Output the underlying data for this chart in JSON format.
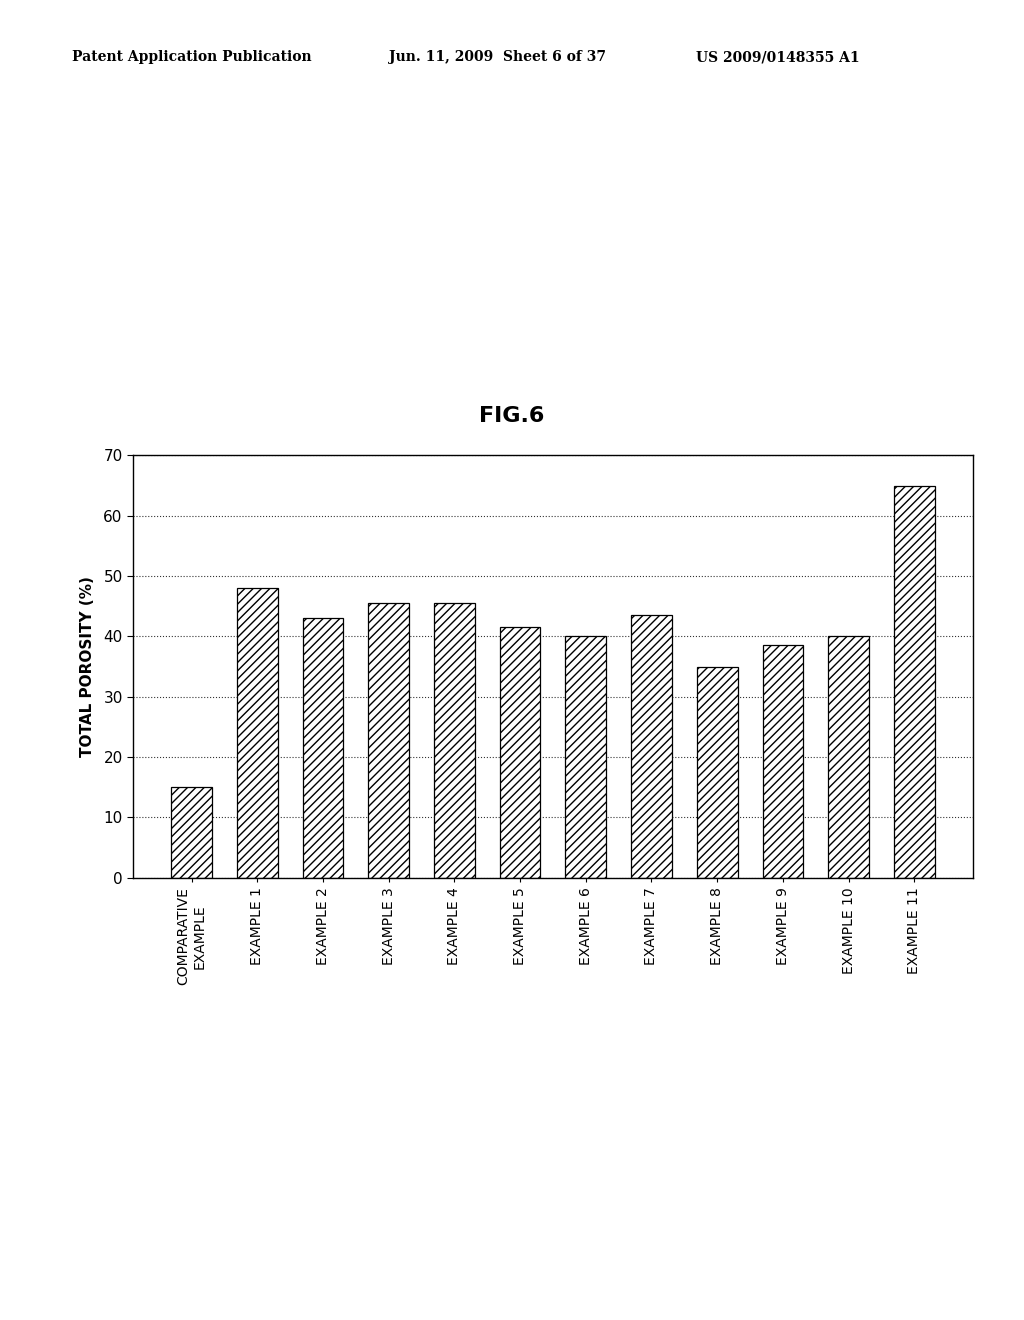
{
  "title": "FIG.6",
  "ylabel": "TOTAL POROSITY (%)",
  "categories": [
    "COMPARATIVE\nEXAMPLE",
    "EXAMPLE 1",
    "EXAMPLE 2",
    "EXAMPLE 3",
    "EXAMPLE 4",
    "EXAMPLE 5",
    "EXAMPLE 6",
    "EXAMPLE 7",
    "EXAMPLE 8",
    "EXAMPLE 9",
    "EXAMPLE 10",
    "EXAMPLE 11"
  ],
  "values": [
    15,
    48,
    43,
    45.5,
    45.5,
    41.5,
    40,
    43.5,
    35,
    38.5,
    40,
    65
  ],
  "ylim": [
    0,
    70
  ],
  "yticks": [
    0,
    10,
    20,
    30,
    40,
    50,
    60,
    70
  ],
  "hatch": "////",
  "background_color": "#ffffff",
  "header_left": "Patent Application Publication",
  "header_center": "Jun. 11, 2009  Sheet 6 of 37",
  "header_right": "US 2009/0148355 A1",
  "title_fontsize": 16,
  "ylabel_fontsize": 11,
  "tick_fontsize": 11,
  "xlabel_fontsize": 10,
  "header_fontsize": 10
}
